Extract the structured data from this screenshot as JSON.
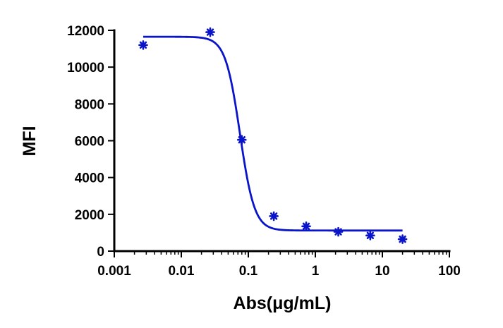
{
  "chart_data": {
    "type": "scatter",
    "title": "",
    "xlabel": "Abs(μg/mL)",
    "ylabel": "MFI",
    "xscale": "log",
    "xlim": [
      0.001,
      100
    ],
    "ylim": [
      0,
      12000
    ],
    "grid": false,
    "legend": "none",
    "x_tick_labels": [
      "0.001",
      "0.01",
      "0.1",
      "1",
      "10",
      "100"
    ],
    "y_tick_labels": [
      "0",
      "2000",
      "4000",
      "6000",
      "8000",
      "10000",
      "12000"
    ],
    "series": [
      {
        "marker": "asterisk",
        "color": "#0a14c8",
        "x": [
          0.0027,
          0.027,
          0.08,
          0.24,
          0.73,
          2.2,
          6.6,
          20
        ],
        "y": [
          11200,
          11900,
          6050,
          1900,
          1350,
          1050,
          850,
          650
        ]
      }
    ],
    "fit": {
      "type": "4PL",
      "color": "#0a14c8",
      "top": 11650,
      "bottom": 1120,
      "ec50": 0.075,
      "hill": 4,
      "x_range": [
        0.0027,
        20
      ]
    }
  }
}
